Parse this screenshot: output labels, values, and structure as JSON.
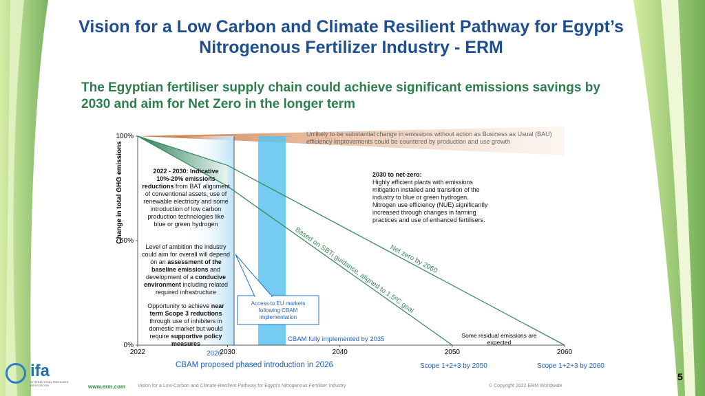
{
  "header": {
    "title": "Vision for a Low Carbon and Climate Resilient Pathway for Egypt’s Nitrogenous Fertilizer Industry - ERM",
    "subtitle": "The Egyptian fertiliser supply chain could achieve significant emissions savings by 2030 and aim for Net Zero in the longer term"
  },
  "chart_data": {
    "type": "line",
    "y_label": "Change in total GHG emissions",
    "xlim": [
      2022,
      2060
    ],
    "ylim": [
      0,
      100
    ],
    "xticks": [
      2022,
      2030,
      2040,
      2050,
      2060
    ],
    "yticks": [
      {
        "value": 0,
        "label": "0%"
      },
      {
        "value": 50,
        "label": "50%"
      },
      {
        "value": 100,
        "label": "100%"
      }
    ],
    "series": [
      {
        "name": "Net zero by 2060",
        "color": "#3a8a5c",
        "x": [
          2022,
          2030,
          2060
        ],
        "values": [
          100,
          86,
          0
        ]
      },
      {
        "name": "Based on SBTi guidance, aligned to 1.5ºC goal",
        "color": "#3a8a5c",
        "x": [
          2022,
          2030,
          2050
        ],
        "values": [
          100,
          76,
          0
        ]
      }
    ],
    "annotations": {
      "bau": "Unlikely to be substantial change in emissions without action as Business as Usual (BAU) efficiency improvements could be countered by production and use growth",
      "net_zero_heading": "2030 to net-zero:",
      "net_zero_text": "Highly efficient plants with emissions mitigation installed and transition of the industry to blue or green hydrogen. Nitrogen use efficiency (NUE) significantly increased through changes in farming practices and use of enhanced fertilisers.",
      "residual": "Some residual emissions are expected",
      "callout": "Access to EU markets following CBAM implementation",
      "cbam_full": "CBAM fully implemented by 2035",
      "year_2026": "2026",
      "cbam_proposed": "CBAM proposed phased introduction in 2026",
      "scope_2050": "Scope 1+2+3 by 2050",
      "scope_2060": "Scope 1+2+3 by 2060",
      "note_1_heading": "2022 - 2030: Indicative 10%-20% emissions reductions",
      "note_1_text": "from BAT alignment of conventional assets, use of renewable electricity and some introduction of low carbon production technologies like blue or green hydrogen",
      "note_2": [
        "Level of ambition the industry could aim for overall will depend on an ",
        "assessment of the baseline emissions",
        " and development of a ",
        "conducive environment",
        " including related required infrastructure"
      ],
      "note_3": [
        "Opportunity to achieve ",
        "near term Scope 3 reductions",
        " through use of inhibiters in domestic market but would require ",
        "supportive policy measures"
      ]
    }
  },
  "footer": {
    "site": "www.erm.com",
    "text": "Vision for a Low-Carbon and Climate-Resilient Pathway for Egypt's Nitrogenous Fertiliser Industry",
    "copyright": "© Copyright 2022 ERM Worldwide",
    "page": "5",
    "logo": "ifa",
    "logo_sub": "INTERNATIONAL FERTILIZER ASSOCIATION"
  }
}
